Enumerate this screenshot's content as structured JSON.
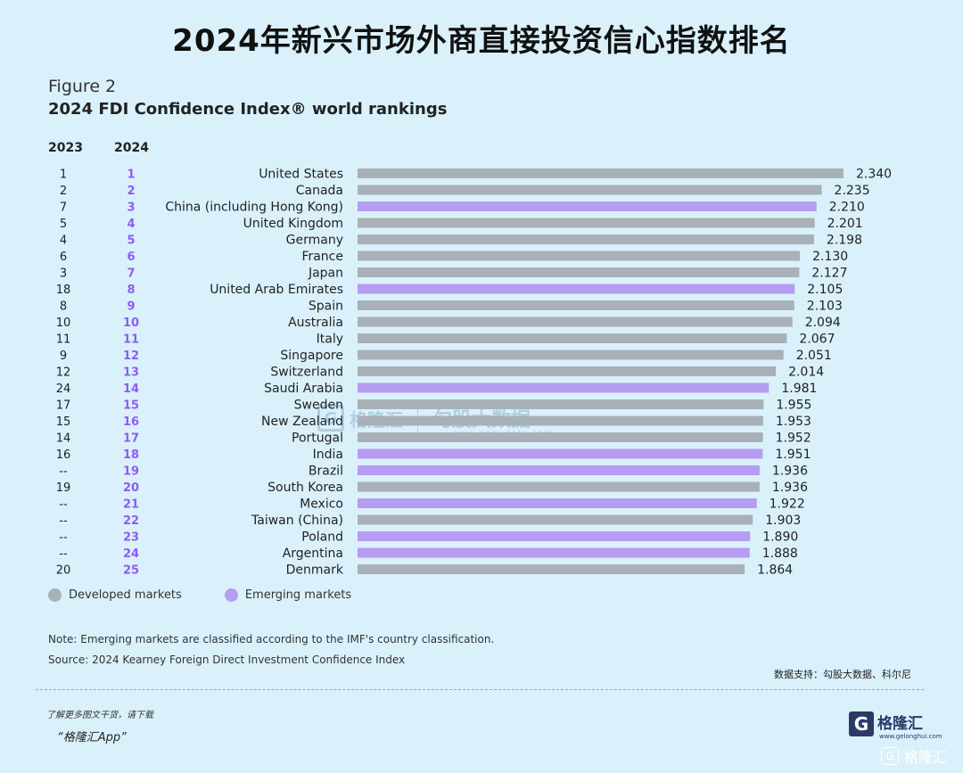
{
  "header": {
    "main_title": "2024年新兴市场外商直接投资信心指数排名",
    "figure_label": "Figure 2",
    "figure_title": "2024 FDI Confidence Index® world rankings",
    "col_2023": "2023",
    "col_2024": "2024"
  },
  "chart_data": {
    "type": "bar",
    "orientation": "horizontal",
    "title": "2024 FDI Confidence Index® world rankings",
    "xlim": [
      0,
      2.34
    ],
    "grid": false,
    "legend_position": "bottom-left",
    "categories": [
      "United States",
      "Canada",
      "China (including Hong Kong)",
      "United Kingdom",
      "Germany",
      "France",
      "Japan",
      "United Arab Emirates",
      "Spain",
      "Australia",
      "Italy",
      "Singapore",
      "Switzerland",
      "Saudi Arabia",
      "Sweden",
      "New Zealand",
      "Portugal",
      "India",
      "Brazil",
      "South Korea",
      "Mexico",
      "Taiwan (China)",
      "Poland",
      "Argentina",
      "Denmark"
    ],
    "values": [
      2.34,
      2.235,
      2.21,
      2.201,
      2.198,
      2.13,
      2.127,
      2.105,
      2.103,
      2.094,
      2.067,
      2.051,
      2.014,
      1.981,
      1.955,
      1.953,
      1.952,
      1.951,
      1.936,
      1.936,
      1.922,
      1.903,
      1.89,
      1.888,
      1.864
    ],
    "value_labels": [
      "2.340",
      "2.235",
      "2.210",
      "2.201",
      "2.198",
      "2.130",
      "2.127",
      "2.105",
      "2.103",
      "2.094",
      "2.067",
      "2.051",
      "2.014",
      "1.981",
      "1.955",
      "1.953",
      "1.952",
      "1.951",
      "1.936",
      "1.936",
      "1.922",
      "1.903",
      "1.890",
      "1.888",
      "1.864"
    ],
    "rank_2023": [
      "1",
      "2",
      "7",
      "5",
      "4",
      "6",
      "3",
      "18",
      "8",
      "10",
      "11",
      "9",
      "12",
      "24",
      "17",
      "15",
      "14",
      "16",
      "--",
      "19",
      "--",
      "--",
      "--",
      "--",
      "20"
    ],
    "rank_2024": [
      "1",
      "2",
      "3",
      "4",
      "5",
      "6",
      "7",
      "8",
      "9",
      "10",
      "11",
      "12",
      "13",
      "14",
      "15",
      "16",
      "17",
      "18",
      "19",
      "20",
      "21",
      "22",
      "23",
      "24",
      "25"
    ],
    "group": [
      "developed",
      "developed",
      "emerging",
      "developed",
      "developed",
      "developed",
      "developed",
      "emerging",
      "developed",
      "developed",
      "developed",
      "developed",
      "developed",
      "emerging",
      "developed",
      "developed",
      "developed",
      "emerging",
      "emerging",
      "developed",
      "emerging",
      "developed",
      "emerging",
      "emerging",
      "developed"
    ],
    "colors": {
      "developed": "#a7b1b7",
      "emerging": "#b69cf2"
    },
    "legend": [
      {
        "key": "developed",
        "label": "Developed markets"
      },
      {
        "key": "emerging",
        "label": "Emerging markets"
      }
    ]
  },
  "notes": {
    "note": "Note: Emerging markets are classified according to the IMF's country classification.",
    "source": "Source: 2024 Kearney Foreign Direct Investment Confidence Index",
    "credit": "数据支持：勾股大数据、科尔尼"
  },
  "watermark": {
    "brand": "格隆汇",
    "cn": "勾股大数据",
    "url": "www.gogudata.com"
  },
  "footer": {
    "promo_line": "了解更多图文干货，请下载",
    "app_line": "“格隆汇App”",
    "brand": "格隆汇",
    "brand_url": "www.gelonghui.com",
    "logo_letter": "G",
    "bottom_brand": "格隆汇"
  }
}
